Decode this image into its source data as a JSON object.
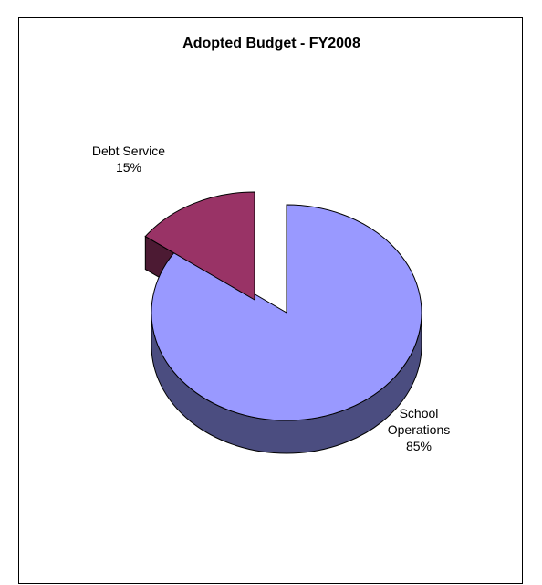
{
  "chart_data": {
    "type": "pie",
    "title": "Adopted Budget - FY2008",
    "slices": [
      {
        "label": "School Operations",
        "label_lines": [
          "School",
          "Operations"
        ],
        "value": 85,
        "value_label": "85%",
        "color": "#9999ff",
        "side_color": "#4b4d80",
        "exploded": false
      },
      {
        "label": "Debt Service",
        "label_lines": [
          "Debt Service"
        ],
        "value": 15,
        "value_label": "15%",
        "color": "#993366",
        "side_color": "#4c1a33",
        "exploded": true
      }
    ],
    "style": "3d-exploded",
    "legend": "none"
  }
}
